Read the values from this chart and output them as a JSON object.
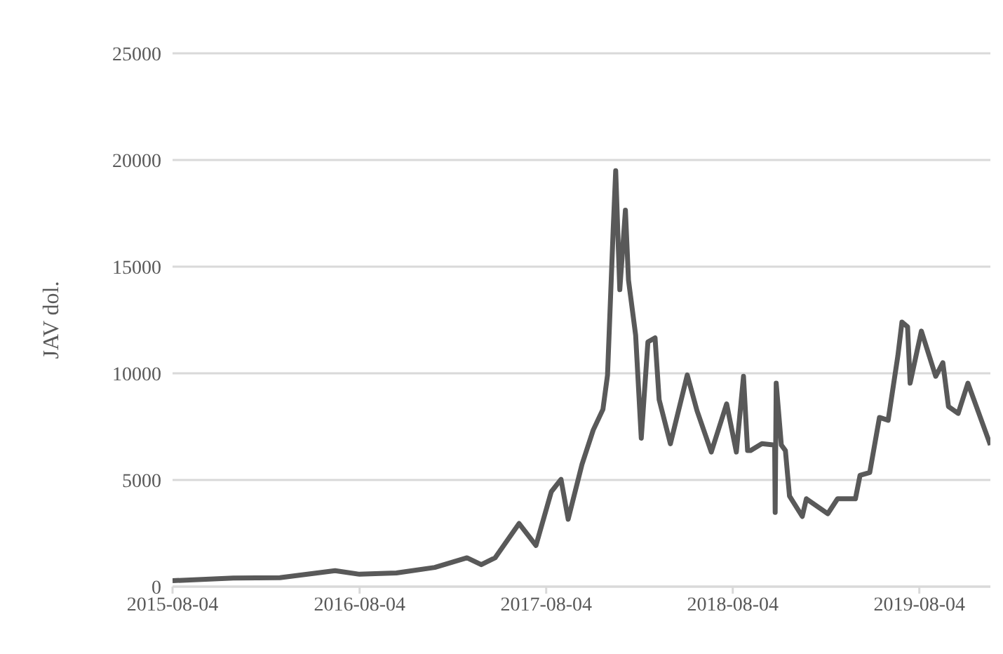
{
  "chart_data": {
    "type": "line",
    "ylabel": "JAV dol.",
    "grid": "y",
    "marker": "none",
    "line_style": "solid",
    "x": [
      "2015-08-04",
      "2015-12-01",
      "2016-03-01",
      "2016-06-17",
      "2016-08-04",
      "2016-10-15",
      "2016-12-29",
      "2017-03-02",
      "2017-03-30",
      "2017-04-26",
      "2017-06-12",
      "2017-07-15",
      "2017-08-14",
      "2017-09-02",
      "2017-09-16",
      "2017-10-13",
      "2017-11-04",
      "2017-11-23",
      "2017-12-02",
      "2017-12-13",
      "2017-12-18",
      "2017-12-26",
      "2018-01-06",
      "2018-01-12",
      "2018-01-26",
      "2018-02-06",
      "2018-02-19",
      "2018-03-05",
      "2018-03-13",
      "2018-04-04",
      "2018-05-07",
      "2018-05-26",
      "2018-06-23",
      "2018-07-23",
      "2018-08-11",
      "2018-08-25",
      "2018-09-02",
      "2018-09-08",
      "2018-09-30",
      "2018-10-25",
      "2018-10-26",
      "2018-10-28",
      "2018-11-07",
      "2018-11-15",
      "2018-11-23",
      "2018-12-18",
      "2018-12-26",
      "2019-02-06",
      "2019-02-25",
      "2019-04-01",
      "2019-04-10",
      "2019-04-29",
      "2019-05-18",
      "2019-06-04",
      "2019-06-23",
      "2019-07-01",
      "2019-07-12",
      "2019-07-17",
      "2019-08-08",
      "2019-09-05",
      "2019-09-19",
      "2019-09-30",
      "2019-10-19",
      "2019-11-07",
      "2019-12-21"
    ],
    "series": [
      {
        "color": "#595959",
        "values": [
          280,
          400,
          420,
          750,
          580,
          640,
          900,
          1350,
          1030,
          1350,
          2960,
          1930,
          4450,
          5030,
          3160,
          5730,
          7340,
          8310,
          9920,
          16690,
          19500,
          13920,
          17650,
          14370,
          11790,
          6960,
          11470,
          11660,
          8760,
          6700,
          9920,
          8250,
          6310,
          8570,
          6310,
          9860,
          6380,
          6380,
          6700,
          6640,
          3480,
          9540,
          6640,
          6380,
          4250,
          3290,
          4120,
          3420,
          4120,
          4120,
          5220,
          5350,
          7930,
          7800,
          10820,
          12400,
          12180,
          9540,
          11980,
          9860,
          10500,
          8440,
          8120,
          9540,
          6640
        ]
      }
    ],
    "xlim": [
      "2015-08-04",
      "2019-12-21"
    ],
    "xticks": [
      "2015-08-04",
      "2016-08-04",
      "2017-08-04",
      "2018-08-04",
      "2019-08-04"
    ],
    "ylim": [
      0,
      25000
    ],
    "yticks": [
      0,
      5000,
      10000,
      15000,
      20000,
      25000
    ]
  }
}
